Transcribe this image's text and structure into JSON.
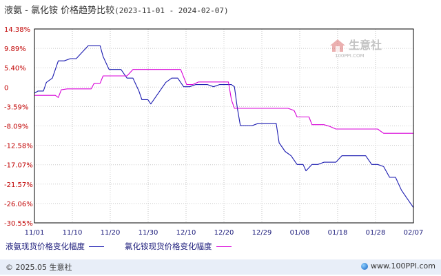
{
  "title": {
    "main": "液氨 - 氯化铵 价格趋势比较",
    "range": "(2023-11-01 - 2024-02-07)"
  },
  "watermark": {
    "text": "生意社",
    "sub": "100PPI.COM"
  },
  "chart_data": {
    "type": "line",
    "categories": [
      "11/01",
      "11/10",
      "11/20",
      "11/30",
      "12/10",
      "12/20",
      "12/29",
      "01/08",
      "01/18",
      "01/28",
      "02/07"
    ],
    "yticks": [
      "14.38%",
      "9.89%",
      "5.40%",
      "0",
      "-3.59%",
      "-8.09%",
      "-12.58%",
      "-17.07%",
      "-21.57%",
      "-26.06%",
      "-30.55%"
    ],
    "ylim": [
      -30.55,
      14.38
    ],
    "grid": true,
    "legend_position": "bottom",
    "series": [
      {
        "name": "液氨现货价格变化幅度",
        "color": "#1a1ab0",
        "points": [
          [
            0,
            -0.5
          ],
          [
            1.2,
            0
          ],
          [
            3,
            0
          ],
          [
            4,
            2
          ],
          [
            6,
            3
          ],
          [
            8,
            7
          ],
          [
            10,
            7
          ],
          [
            12,
            7.5
          ],
          [
            14,
            7.5
          ],
          [
            16,
            9
          ],
          [
            18,
            10.5
          ],
          [
            20,
            10.5
          ],
          [
            22,
            10.5
          ],
          [
            23,
            8
          ],
          [
            25,
            5
          ],
          [
            27,
            5
          ],
          [
            29,
            5
          ],
          [
            31,
            3
          ],
          [
            33,
            3
          ],
          [
            35,
            0
          ],
          [
            36,
            -2
          ],
          [
            38,
            -2
          ],
          [
            39,
            -3
          ],
          [
            40,
            -2
          ],
          [
            42,
            0
          ],
          [
            44,
            2
          ],
          [
            46,
            3
          ],
          [
            48,
            3
          ],
          [
            50,
            1
          ],
          [
            52,
            1
          ],
          [
            54,
            1.5
          ],
          [
            56,
            1.5
          ],
          [
            58,
            1.5
          ],
          [
            60,
            1
          ],
          [
            62,
            1.5
          ],
          [
            64,
            1.5
          ],
          [
            66,
            1.5
          ],
          [
            67,
            1
          ],
          [
            68,
            -4
          ],
          [
            69,
            -8
          ],
          [
            71,
            -8
          ],
          [
            73,
            -8
          ],
          [
            75,
            -7.5
          ],
          [
            77,
            -7.5
          ],
          [
            79,
            -7.5
          ],
          [
            81,
            -7.5
          ],
          [
            82,
            -12
          ],
          [
            84,
            -14
          ],
          [
            86,
            -15
          ],
          [
            88,
            -17
          ],
          [
            90,
            -17
          ],
          [
            91,
            -18.5
          ],
          [
            93,
            -17
          ],
          [
            95,
            -17
          ],
          [
            97,
            -16.5
          ],
          [
            99,
            -16.5
          ],
          [
            101,
            -16.5
          ],
          [
            103,
            -15
          ],
          [
            105,
            -15
          ],
          [
            107,
            -15
          ],
          [
            109,
            -15
          ],
          [
            111,
            -15
          ],
          [
            113,
            -17
          ],
          [
            115,
            -17
          ],
          [
            117,
            -17.5
          ],
          [
            119,
            -20
          ],
          [
            121,
            -20
          ],
          [
            123,
            -23
          ],
          [
            125,
            -25
          ],
          [
            127,
            -27
          ]
        ]
      },
      {
        "name": "氯化铵现货价格变化幅度",
        "color": "#d800d8",
        "points": [
          [
            0,
            -1
          ],
          [
            5,
            -1
          ],
          [
            7,
            -1
          ],
          [
            8,
            -1.5
          ],
          [
            9,
            0.3
          ],
          [
            11,
            0.5
          ],
          [
            13,
            0.5
          ],
          [
            15,
            0.5
          ],
          [
            19,
            0.5
          ],
          [
            20,
            1.8
          ],
          [
            22,
            1.8
          ],
          [
            23,
            3.5
          ],
          [
            27,
            3.5
          ],
          [
            29,
            3.5
          ],
          [
            31,
            3.5
          ],
          [
            33,
            5
          ],
          [
            35,
            5
          ],
          [
            39,
            5
          ],
          [
            41,
            5
          ],
          [
            43,
            5
          ],
          [
            45,
            5
          ],
          [
            47,
            5
          ],
          [
            49,
            5
          ],
          [
            51,
            1.5
          ],
          [
            53,
            1.5
          ],
          [
            55,
            2.1
          ],
          [
            57,
            2.1
          ],
          [
            59,
            2.1
          ],
          [
            61,
            2.1
          ],
          [
            63,
            2.1
          ],
          [
            65,
            2.1
          ],
          [
            66,
            -2
          ],
          [
            67,
            -4
          ],
          [
            69,
            -4
          ],
          [
            71,
            -4
          ],
          [
            73,
            -4
          ],
          [
            77,
            -4
          ],
          [
            81,
            -4
          ],
          [
            83,
            -4
          ],
          [
            85,
            -4
          ],
          [
            87,
            -4.5
          ],
          [
            88,
            -6
          ],
          [
            90,
            -6
          ],
          [
            92,
            -6
          ],
          [
            93,
            -7.8
          ],
          [
            95,
            -7.8
          ],
          [
            97,
            -7.8
          ],
          [
            99,
            -8.2
          ],
          [
            101,
            -8.8
          ],
          [
            103,
            -8.8
          ],
          [
            107,
            -8.8
          ],
          [
            111,
            -8.8
          ],
          [
            115,
            -8.8
          ],
          [
            117,
            -9.8
          ],
          [
            119,
            -9.8
          ],
          [
            121,
            -9.8
          ],
          [
            123,
            -9.8
          ],
          [
            125,
            -9.8
          ],
          [
            127,
            -9.8
          ]
        ]
      }
    ]
  },
  "footer": {
    "copyright": "© 2025.05 生意社",
    "website": "www.100PPI.com"
  }
}
